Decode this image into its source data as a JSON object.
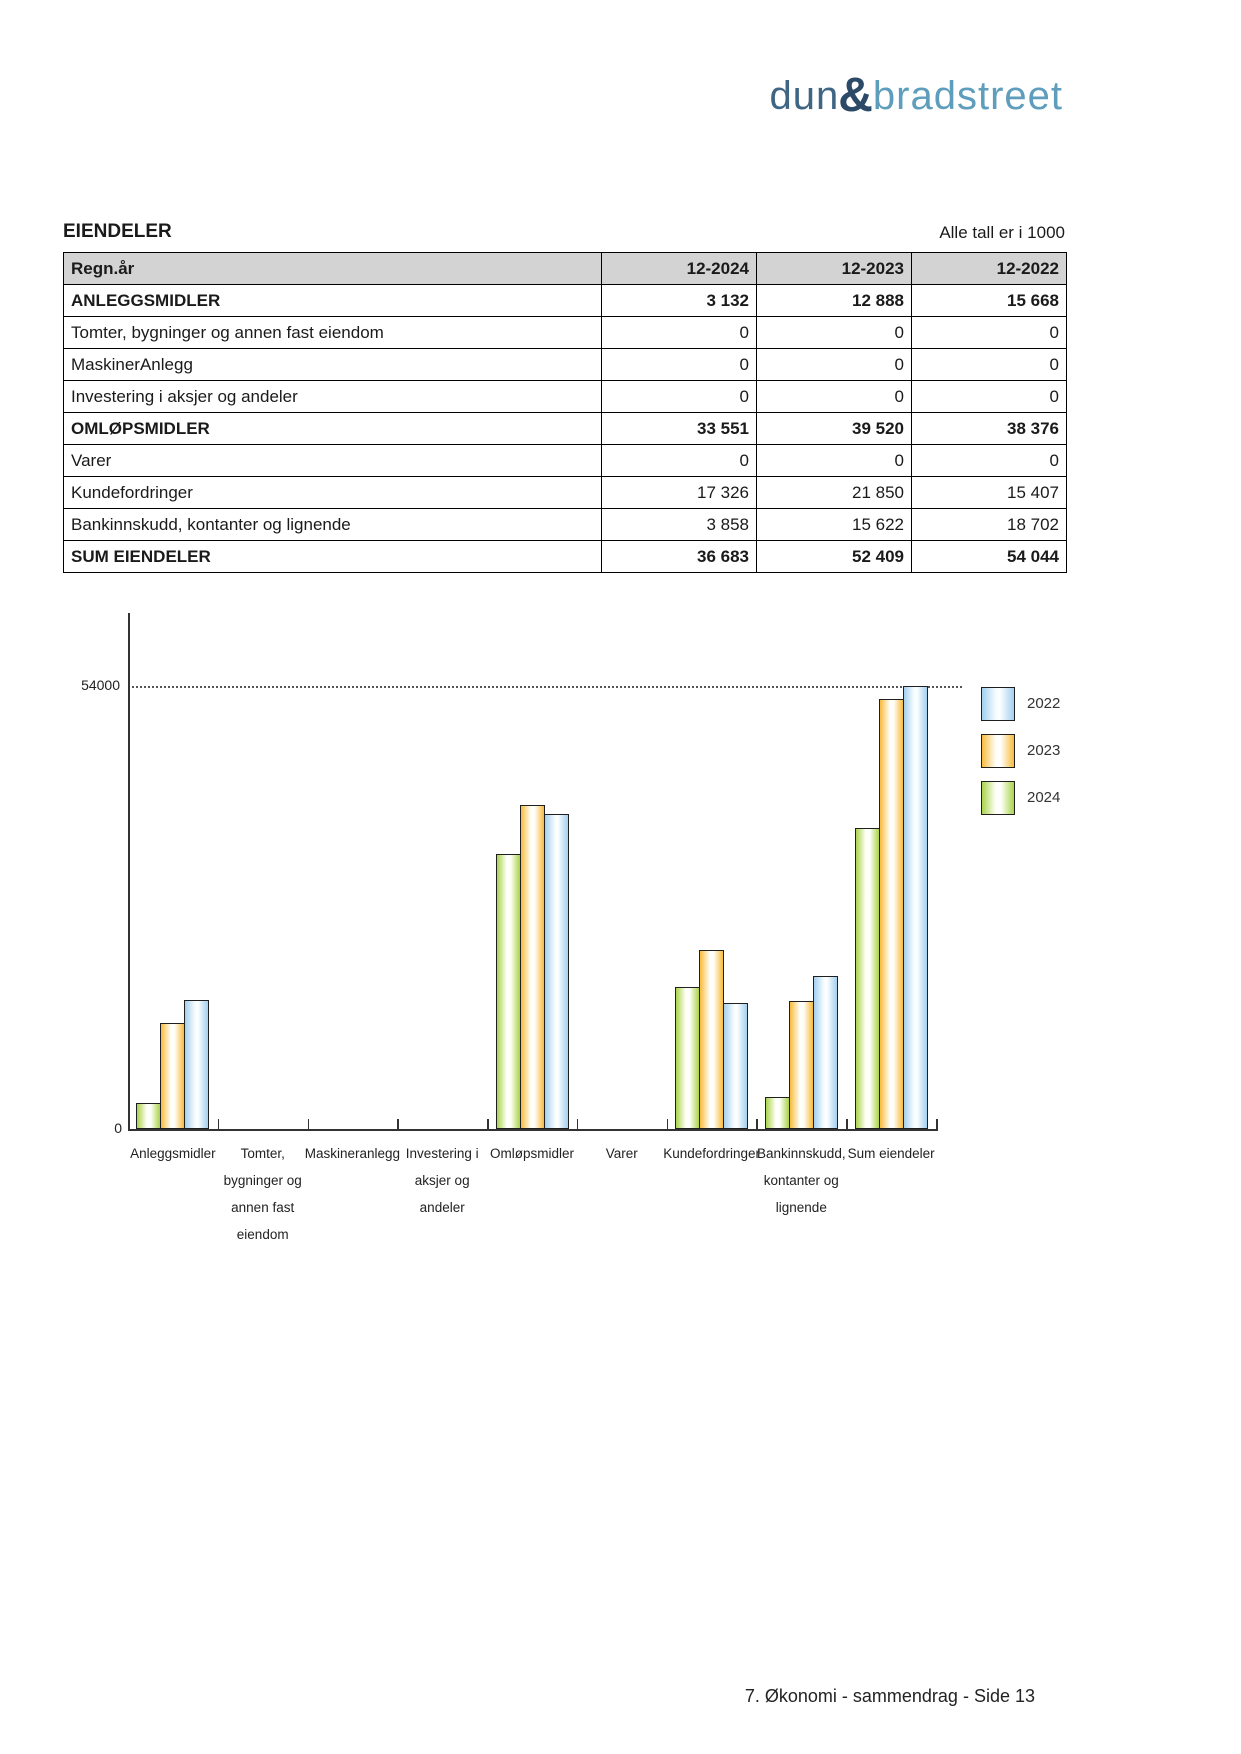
{
  "logo": {
    "part1": "dun",
    "ampersand": "&",
    "part2": "bradstreet",
    "color_part1": "#3e6584",
    "color_ampersand": "#2c4a67",
    "color_part2": "#5e9dbc"
  },
  "section": {
    "title": "EIENDELER",
    "units_note": "Alle tall er i 1000"
  },
  "table": {
    "headers": [
      "Regn.år",
      "12-2024",
      "12-2023",
      "12-2022"
    ],
    "rows": [
      {
        "label": "ANLEGGSMIDLER",
        "values": [
          "3 132",
          "12 888",
          "15 668"
        ],
        "bold": true
      },
      {
        "label": "Tomter, bygninger og annen fast eiendom",
        "values": [
          "0",
          "0",
          "0"
        ],
        "bold": false
      },
      {
        "label": "MaskinerAnlegg",
        "values": [
          "0",
          "0",
          "0"
        ],
        "bold": false
      },
      {
        "label": "Investering i aksjer og andeler",
        "values": [
          "0",
          "0",
          "0"
        ],
        "bold": false
      },
      {
        "label": "OMLØPSMIDLER",
        "values": [
          "33 551",
          "39 520",
          "38 376"
        ],
        "bold": true
      },
      {
        "label": "Varer",
        "values": [
          "0",
          "0",
          "0"
        ],
        "bold": false
      },
      {
        "label": "Kundefordringer",
        "values": [
          "17 326",
          "21 850",
          "15 407"
        ],
        "bold": false
      },
      {
        "label": "Bankinnskudd, kontanter og lignende",
        "values": [
          "3 858",
          "15 622",
          "18 702"
        ],
        "bold": false
      },
      {
        "label": "SUM EIENDELER",
        "values": [
          "36 683",
          "52 409",
          "54 044"
        ],
        "bold": true
      }
    ]
  },
  "chart_data": {
    "type": "bar",
    "title": "",
    "xlabel": "",
    "ylabel": "",
    "ymax_gridline": 54000,
    "ylim": [
      0,
      54000
    ],
    "y_tick_labels": [
      "0",
      "54000"
    ],
    "grid": "single dotted horizontal gridline at 54000",
    "legend_position": "top-right outside plot",
    "categories": [
      "Anleggsmidler",
      "Tomter, bygninger og annen fast eiendom",
      "Maskineranlegg",
      "Investering i aksjer og andeler",
      "Omløpsmidler",
      "Varer",
      "Kundefordringer",
      "Bankinnskudd, kontanter og lignende",
      "Sum eiendeler"
    ],
    "category_label_lines": [
      [
        "Anleggsmidler"
      ],
      [
        "Tomter,",
        "bygninger og",
        "annen fast",
        "eiendom"
      ],
      [
        "Maskineranlegg"
      ],
      [
        "Investering i",
        "aksjer og",
        "andeler"
      ],
      [
        "Omløpsmidler"
      ],
      [
        "Varer"
      ],
      [
        "Kundefordringer"
      ],
      [
        "Bankinnskudd,",
        "kontanter og",
        "lignende"
      ],
      [
        "Sum eiendeler"
      ]
    ],
    "series": [
      {
        "name": "2024",
        "color_edge": "#a9d34b",
        "color_center": "#fdfff5",
        "values": [
          3132,
          0,
          0,
          0,
          33551,
          0,
          17326,
          3858,
          36683
        ]
      },
      {
        "name": "2023",
        "color_edge": "#f8bb3d",
        "color_center": "#fffdf4",
        "values": [
          12888,
          0,
          0,
          0,
          39520,
          0,
          21850,
          15622,
          52409
        ]
      },
      {
        "name": "2022",
        "color_edge": "#a3cfee",
        "color_center": "#f4fbff",
        "values": [
          15668,
          0,
          0,
          0,
          38376,
          0,
          15407,
          18702,
          54044
        ]
      }
    ],
    "bar_draw_order": [
      "2024",
      "2023",
      "2022"
    ],
    "legend_order": [
      "2022",
      "2023",
      "2024"
    ]
  },
  "footer": {
    "text": "7. Økonomi - sammendrag - Side 13"
  }
}
